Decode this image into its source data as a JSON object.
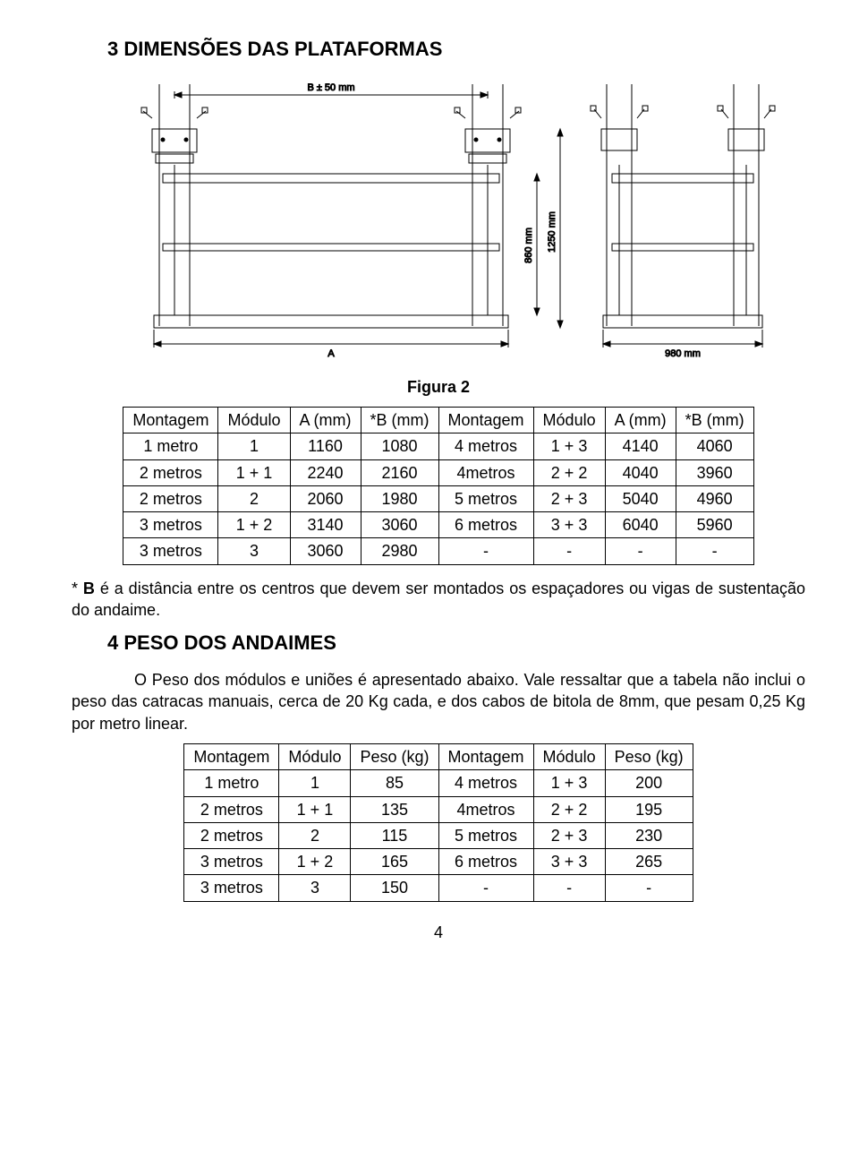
{
  "section3": {
    "title": "3   DIMENSÕES DAS PLATAFORMAS",
    "figure_caption": "Figura 2",
    "diagram": {
      "stroke": "#000000",
      "fill": "#ffffff",
      "labels": {
        "top": "B ± 50 mm",
        "height_inner": "860 mm",
        "height_outer": "1250 mm",
        "width_main": "A",
        "width_side": "980 mm"
      }
    },
    "table1": {
      "headers": [
        "Montagem",
        "Módulo",
        "A (mm)",
        "*B (mm)",
        "Montagem",
        "Módulo",
        "A (mm)",
        "*B (mm)"
      ],
      "rows": [
        [
          "1 metro",
          "1",
          "1160",
          "1080",
          "4 metros",
          "1 + 3",
          "4140",
          "4060"
        ],
        [
          "2 metros",
          "1 + 1",
          "2240",
          "2160",
          "4metros",
          "2 + 2",
          "4040",
          "3960"
        ],
        [
          "2 metros",
          "2",
          "2060",
          "1980",
          "5 metros",
          "2 + 3",
          "5040",
          "4960"
        ],
        [
          "3 metros",
          "1 + 2",
          "3140",
          "3060",
          "6 metros",
          "3 + 3",
          "6040",
          "5960"
        ],
        [
          "3 metros",
          "3",
          "3060",
          "2980",
          "-",
          "-",
          "-",
          "-"
        ]
      ]
    },
    "note_prefix": "* ",
    "note_bold": "B",
    "note_rest": " é a distância entre os centros que devem ser montados os espaçadores ou vigas de sustentação do andaime."
  },
  "section4": {
    "title": "4   PESO DOS ANDAIMES",
    "para": "O Peso dos módulos e uniões é apresentado abaixo. Vale ressaltar que a tabela não inclui o peso das catracas manuais, cerca de 20 Kg cada, e dos cabos de bitola de 8mm, que pesam 0,25 Kg por metro linear.",
    "table2": {
      "headers": [
        "Montagem",
        "Módulo",
        "Peso (kg)",
        "Montagem",
        "Módulo",
        "Peso (kg)"
      ],
      "rows": [
        [
          "1 metro",
          "1",
          "85",
          "4 metros",
          "1 + 3",
          "200"
        ],
        [
          "2 metros",
          "1 + 1",
          "135",
          "4metros",
          "2 + 2",
          "195"
        ],
        [
          "2 metros",
          "2",
          "115",
          "5 metros",
          "2 + 3",
          "230"
        ],
        [
          "3 metros",
          "1 + 2",
          "165",
          "6 metros",
          "3 + 3",
          "265"
        ],
        [
          "3 metros",
          "3",
          "150",
          "-",
          "-",
          "-"
        ]
      ]
    }
  },
  "page_number": "4"
}
